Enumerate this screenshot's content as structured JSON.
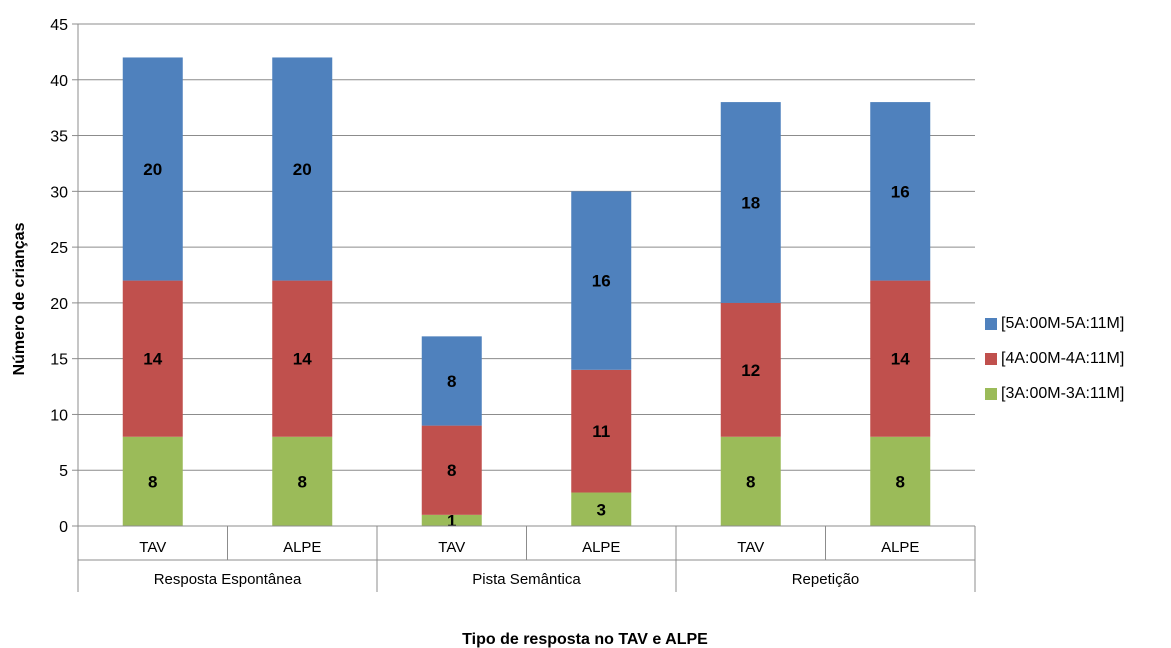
{
  "chart_data": {
    "type": "bar",
    "stacked": true,
    "groups": [
      "Resposta Espontânea",
      "Pista Semântica",
      "Repetição"
    ],
    "categories": [
      "TAV",
      "ALPE",
      "TAV",
      "ALPE",
      "TAV",
      "ALPE"
    ],
    "series": [
      {
        "name": "[3A:00M-3A:11M]",
        "color": "#9bbb59",
        "values": [
          8,
          8,
          1,
          3,
          8,
          8
        ]
      },
      {
        "name": "[4A:00M-4A:11M]",
        "color": "#c0504d",
        "values": [
          14,
          14,
          8,
          11,
          12,
          14
        ]
      },
      {
        "name": "[5A:00M-5A:11M]",
        "color": "#4f81bd",
        "values": [
          20,
          20,
          8,
          16,
          18,
          16
        ]
      }
    ],
    "ylim": [
      0,
      45
    ],
    "yticks": [
      0,
      5,
      10,
      15,
      20,
      25,
      30,
      35,
      40,
      45
    ],
    "ylabel": "Número de crianças",
    "xlabel": "Tipo de resposta no TAV e ALPE",
    "grid": true,
    "legend_position": "right"
  }
}
